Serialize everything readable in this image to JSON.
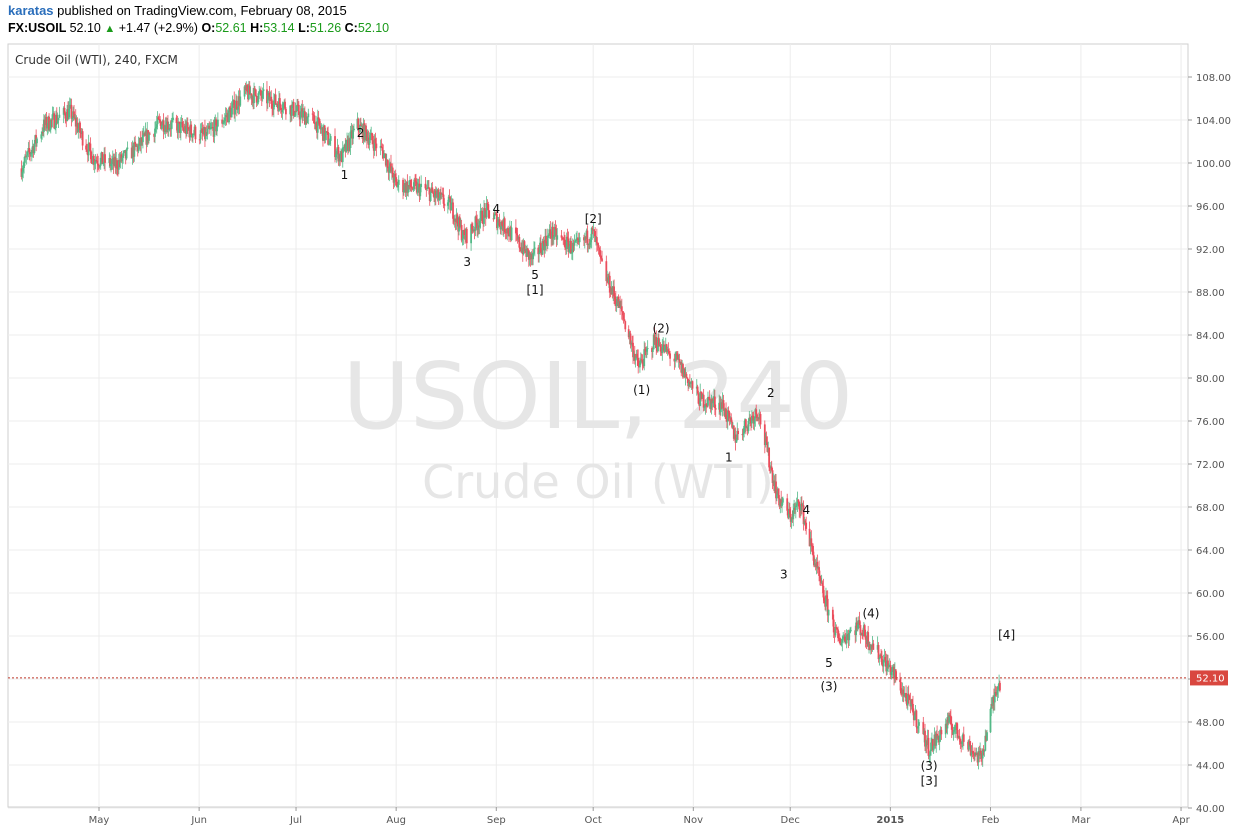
{
  "header": {
    "author": "karatas",
    "published": "published on TradingView.com, February 08, 2015",
    "symbol": "FX:USOIL",
    "last": "52.10",
    "change": "+1.47 (+2.9%)",
    "o_label": "O:",
    "o_val": "52.61",
    "h_label": "H:",
    "h_val": "53.14",
    "l_label": "L:",
    "l_val": "51.26",
    "c_label": "C:",
    "c_val": "52.10"
  },
  "colors": {
    "up": "#53b987",
    "down": "#eb4d5c",
    "price_line": "#c0392b",
    "watermark": "#e6e6e6"
  },
  "chart_data": {
    "type": "candlestick",
    "legend": "Crude Oil (WTI), 240, FXCM",
    "watermark_symbol": "USOIL, 240",
    "watermark_name": "Crude Oil (WTI)",
    "ylim": [
      40,
      108
    ],
    "y_ticks": [
      "108.00",
      "104.00",
      "100.00",
      "96.00",
      "92.00",
      "88.00",
      "84.00",
      "80.00",
      "76.00",
      "72.00",
      "68.00",
      "64.00",
      "60.00",
      "56.00",
      "52.00",
      "48.00",
      "44.00",
      "40.00"
    ],
    "x_ticks": [
      "May",
      "Jun",
      "Jul",
      "Aug",
      "Sep",
      "Oct",
      "Nov",
      "Dec",
      "2015",
      "Feb",
      "Mar",
      "Apr"
    ],
    "last_price": 52.1,
    "last_price_label": "52.10",
    "path": [
      [
        "2014-04-07",
        99.5
      ],
      [
        "2014-04-14",
        103.5
      ],
      [
        "2014-04-22",
        104.8
      ],
      [
        "2014-04-29",
        100.5
      ],
      [
        "2014-05-06",
        99.8
      ],
      [
        "2014-05-13",
        101.5
      ],
      [
        "2014-05-20",
        103.8
      ],
      [
        "2014-05-27",
        103.2
      ],
      [
        "2014-06-03",
        102.5
      ],
      [
        "2014-06-10",
        104.5
      ],
      [
        "2014-06-15",
        106.5
      ],
      [
        "2014-06-20",
        106.2
      ],
      [
        "2014-06-28",
        105.3
      ],
      [
        "2014-07-07",
        103.8
      ],
      [
        "2014-07-15",
        100.5
      ],
      [
        "2014-07-20",
        103.5
      ],
      [
        "2014-07-28",
        101.0
      ],
      [
        "2014-08-01",
        98.0
      ],
      [
        "2014-08-10",
        97.5
      ],
      [
        "2014-08-18",
        96.0
      ],
      [
        "2014-08-22",
        93.0
      ],
      [
        "2014-08-29",
        95.5
      ],
      [
        "2014-09-04",
        94.0
      ],
      [
        "2014-09-12",
        91.0
      ],
      [
        "2014-09-18",
        93.5
      ],
      [
        "2014-09-25",
        92.0
      ],
      [
        "2014-10-01",
        93.5
      ],
      [
        "2014-10-04",
        90.0
      ],
      [
        "2014-10-10",
        86.0
      ],
      [
        "2014-10-15",
        81.0
      ],
      [
        "2014-10-20",
        83.5
      ],
      [
        "2014-10-27",
        81.5
      ],
      [
        "2014-11-03",
        78.0
      ],
      [
        "2014-11-10",
        77.5
      ],
      [
        "2014-11-14",
        74.5
      ],
      [
        "2014-11-21",
        77.0
      ],
      [
        "2014-11-27",
        69.0
      ],
      [
        "2014-12-01",
        67.0
      ],
      [
        "2014-12-04",
        68.5
      ],
      [
        "2014-12-11",
        60.0
      ],
      [
        "2014-12-16",
        55.5
      ],
      [
        "2014-12-22",
        57.0
      ],
      [
        "2014-12-28",
        54.5
      ],
      [
        "2015-01-02",
        52.5
      ],
      [
        "2015-01-08",
        49.0
      ],
      [
        "2015-01-13",
        45.5
      ],
      [
        "2015-01-19",
        48.0
      ],
      [
        "2015-01-26",
        45.5
      ],
      [
        "2015-01-29",
        44.5
      ],
      [
        "2015-02-03",
        51.5
      ],
      [
        "2015-02-06",
        52.1
      ]
    ],
    "annotations": [
      {
        "text": "2",
        "date": "2014-07-21",
        "price": 102.8
      },
      {
        "text": "1",
        "date": "2014-07-16",
        "price": 98.9
      },
      {
        "text": "4",
        "date": "2014-09-01",
        "price": 95.7
      },
      {
        "text": "3",
        "date": "2014-08-23",
        "price": 90.8
      },
      {
        "text": "5",
        "date": "2014-09-13",
        "price": 89.6
      },
      {
        "text": "[1]",
        "date": "2014-09-13",
        "price": 88.2
      },
      {
        "text": "[2]",
        "date": "2014-10-01",
        "price": 94.8
      },
      {
        "text": "(2)",
        "date": "2014-10-22",
        "price": 84.6
      },
      {
        "text": "(1)",
        "date": "2014-10-16",
        "price": 78.9
      },
      {
        "text": "2",
        "date": "2014-11-25",
        "price": 78.6
      },
      {
        "text": "1",
        "date": "2014-11-12",
        "price": 72.6
      },
      {
        "text": "4",
        "date": "2014-12-06",
        "price": 67.7
      },
      {
        "text": "3",
        "date": "2014-11-29",
        "price": 61.7
      },
      {
        "text": "(4)",
        "date": "2014-12-26",
        "price": 58.1
      },
      {
        "text": "5",
        "date": "2014-12-13",
        "price": 53.5
      },
      {
        "text": "(3)",
        "date": "2014-12-13",
        "price": 51.3
      },
      {
        "text": "[4]",
        "date": "2015-02-06",
        "price": 56.1
      },
      {
        "text": "(3)",
        "date": "2015-01-13",
        "price": 43.9
      },
      {
        "text": "[3]",
        "date": "2015-01-13",
        "price": 42.5
      }
    ]
  }
}
